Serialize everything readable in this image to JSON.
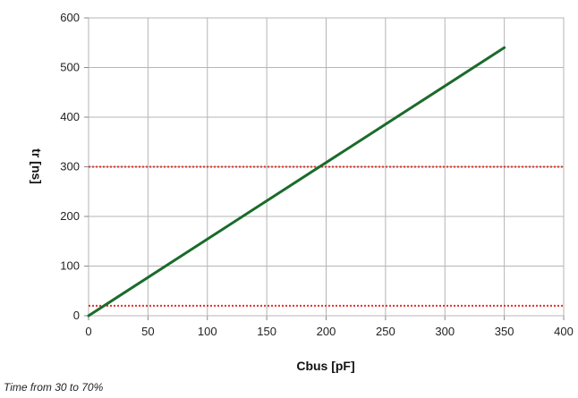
{
  "chart_data": {
    "type": "line",
    "title": "",
    "xlabel": "Cbus [pF]",
    "ylabel": "tr [ns]",
    "xlim": [
      0,
      400
    ],
    "ylim": [
      0,
      600
    ],
    "xticks": [
      0,
      50,
      100,
      150,
      200,
      250,
      300,
      350,
      400
    ],
    "yticks": [
      0,
      100,
      200,
      300,
      400,
      500,
      600
    ],
    "grid": true,
    "series": [
      {
        "x": [
          0,
          350
        ],
        "y": [
          0,
          540
        ],
        "color": "#1a6b2a",
        "style": "solid"
      }
    ],
    "reference_lines": [
      {
        "y": 300,
        "color": "#e0302a",
        "style": "dotted"
      },
      {
        "y": 20,
        "color": "#e0302a",
        "style": "dotted"
      }
    ]
  },
  "note": "Time from 30 to 70%"
}
